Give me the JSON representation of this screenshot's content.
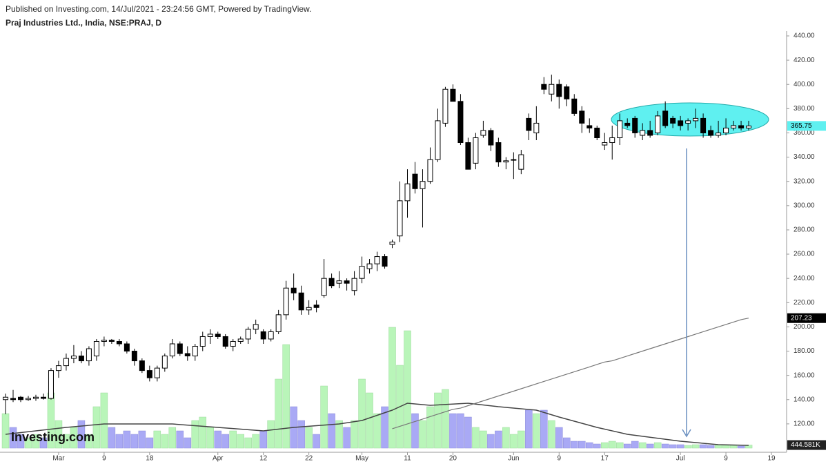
{
  "chart_data": {
    "type": "candlestick",
    "title": "Praj Industries Ltd., India, NSE:PRAJ, D",
    "subtitle": "Published on Investing.com, 14/Jul/2021 - 23:24:56 GMT, Powered by TradingView.",
    "logo": "Investing.com",
    "up_color": "#ffffff",
    "down_color": "#000000",
    "volume_up_color": "#b9f5b9",
    "volume_down_color": "#a9a9f5",
    "open": [
      140,
      141,
      142,
      140,
      141,
      142,
      141,
      164,
      168,
      174,
      176,
      172,
      176,
      188,
      189,
      188,
      186,
      180,
      172,
      164,
      158,
      166,
      176,
      186,
      178,
      176,
      184,
      192,
      194,
      192,
      184,
      188,
      190,
      198,
      196,
      190,
      196,
      210,
      232,
      228,
      214,
      218,
      226,
      240,
      236,
      238,
      230,
      240,
      248,
      252,
      258,
      268,
      275,
      304,
      326,
      314,
      320,
      338,
      368,
      396,
      386,
      352,
      335,
      358,
      362,
      352,
      336,
      338,
      330,
      372,
      360,
      400,
      392,
      400,
      398,
      388,
      378,
      366,
      364,
      350,
      352,
      356,
      368,
      372,
      358,
      362,
      360,
      378,
      372,
      370,
      368,
      370,
      372,
      362,
      358,
      360,
      364,
      366,
      364
    ],
    "high": [
      145,
      148,
      143,
      143,
      144,
      145,
      166,
      172,
      178,
      185,
      180,
      184,
      190,
      192,
      190,
      190,
      188,
      182,
      174,
      168,
      168,
      178,
      190,
      188,
      184,
      186,
      196,
      198,
      196,
      194,
      190,
      192,
      200,
      206,
      198,
      198,
      214,
      238,
      244,
      234,
      222,
      222,
      256,
      244,
      246,
      240,
      246,
      258,
      256,
      262,
      260,
      272,
      320,
      330,
      336,
      330,
      348,
      380,
      398,
      400,
      392,
      356,
      360,
      370,
      364,
      356,
      340,
      344,
      346,
      376,
      382,
      406,
      408,
      404,
      400,
      392,
      382,
      372,
      366,
      360,
      366,
      376,
      372,
      374,
      368,
      370,
      378,
      386,
      374,
      374,
      372,
      380,
      376,
      366,
      370,
      372,
      370,
      370,
      370
    ],
    "low": [
      128,
      138,
      138,
      139,
      139,
      140,
      140,
      158,
      164,
      170,
      170,
      168,
      172,
      184,
      186,
      184,
      178,
      168,
      162,
      155,
      155,
      163,
      174,
      176,
      172,
      172,
      180,
      186,
      190,
      182,
      180,
      186,
      186,
      194,
      186,
      188,
      194,
      206,
      222,
      210,
      210,
      212,
      224,
      232,
      232,
      230,
      226,
      236,
      244,
      246,
      248,
      265,
      270,
      290,
      310,
      282,
      318,
      336,
      365,
      386,
      350,
      330,
      330,
      356,
      345,
      332,
      330,
      322,
      326,
      354,
      354,
      392,
      386,
      380,
      382,
      374,
      360,
      360,
      354,
      346,
      338,
      350,
      364,
      356,
      354,
      356,
      358,
      364,
      364,
      362,
      362,
      364,
      356,
      356,
      356,
      358,
      362,
      362,
      362
    ],
    "close": [
      142,
      140,
      140,
      141,
      142,
      141,
      164,
      168,
      174,
      176,
      172,
      182,
      188,
      189,
      188,
      186,
      180,
      172,
      164,
      158,
      166,
      176,
      186,
      178,
      176,
      184,
      192,
      194,
      192,
      184,
      188,
      190,
      198,
      202,
      190,
      196,
      210,
      232,
      228,
      214,
      216,
      216,
      240,
      234,
      238,
      236,
      240,
      250,
      252,
      258,
      250,
      270,
      304,
      318,
      314,
      320,
      338,
      370,
      396,
      386,
      352,
      330,
      356,
      362,
      350,
      336,
      337,
      338,
      342,
      362,
      368,
      396,
      400,
      390,
      388,
      376,
      368,
      364,
      356,
      352,
      356,
      370,
      366,
      360,
      362,
      358,
      374,
      366,
      368,
      366,
      370,
      372,
      360,
      358,
      360,
      364,
      366,
      364,
      365.75
    ],
    "volume": [
      5000,
      3000,
      2000,
      1500,
      2000,
      1500,
      8000,
      4000,
      2000,
      3000,
      4000,
      2000,
      6000,
      8000,
      3000,
      2000,
      2500,
      2000,
      2500,
      1500,
      2500,
      2000,
      3000,
      2500,
      1500,
      4000,
      4500,
      3000,
      2500,
      2000,
      2500,
      2000,
      1500,
      2000,
      2500,
      4000,
      10000,
      15000,
      6000,
      4000,
      3000,
      2000,
      9000,
      5000,
      4000,
      3000,
      4000,
      10000,
      8000,
      5000,
      6000,
      17500,
      12000,
      17000,
      5000,
      4000,
      6000,
      8000,
      8500,
      5000,
      5000,
      4500,
      3000,
      2500,
      2000,
      2500,
      3000,
      2000,
      2500,
      5500,
      5000,
      5500,
      4000,
      3000,
      1500,
      1000,
      1000,
      800,
      600,
      800,
      1000,
      800,
      600,
      1000,
      800,
      600,
      800,
      600,
      500,
      500,
      400,
      500,
      500,
      400,
      500,
      400,
      400,
      300,
      444.581
    ],
    "volume_value_labels": {
      "98": "444.581K"
    },
    "price_ma": {
      "start": 51,
      "color": "#777777",
      "values": [
        116,
        118,
        120,
        122,
        124,
        126,
        128,
        130,
        132,
        133,
        135,
        137,
        139,
        141,
        143,
        145,
        147,
        149,
        151,
        153,
        155,
        157,
        159,
        161,
        163,
        165,
        167,
        169,
        171,
        172,
        174,
        176,
        178,
        180,
        182,
        184,
        186,
        188,
        190,
        192,
        194,
        196,
        198,
        200,
        202,
        204,
        206,
        207.23
      ]
    },
    "volume_ma": {
      "color": "#444444",
      "x": [
        0,
        8,
        13,
        22,
        28,
        34,
        38,
        44,
        47,
        51,
        53,
        56,
        61,
        65,
        70,
        73,
        78,
        82,
        89,
        94,
        98
      ],
      "values": [
        2000,
        3000,
        3500,
        3500,
        3000,
        2500,
        3000,
        3500,
        4000,
        5500,
        6500,
        6200,
        6500,
        6000,
        5500,
        4500,
        3000,
        2000,
        1000,
        500,
        400
      ]
    },
    "ylim": [
      100,
      440
    ],
    "yticks": [
      {
        "value": 120,
        "label": "120.00"
      },
      {
        "value": 140,
        "label": "140.00"
      },
      {
        "value": 160,
        "label": "160.00"
      },
      {
        "value": 180,
        "label": "180.00"
      },
      {
        "value": 200,
        "label": "200.00"
      },
      {
        "value": 220,
        "label": "220.00"
      },
      {
        "value": 240,
        "label": "240.00"
      },
      {
        "value": 260,
        "label": "260.00"
      },
      {
        "value": 280,
        "label": "280.00"
      },
      {
        "value": 300,
        "label": "300.00"
      },
      {
        "value": 320,
        "label": "320.00"
      },
      {
        "value": 340,
        "label": "340.00"
      },
      {
        "value": 360,
        "label": "360.00"
      },
      {
        "value": 380,
        "label": "380.00"
      },
      {
        "value": 400,
        "label": "400.00"
      },
      {
        "value": 420,
        "label": "420.00"
      },
      {
        "value": 440,
        "label": "440.00"
      }
    ],
    "vlim": [
      0,
      20000
    ],
    "xlim": [
      -0.73,
      103
    ],
    "xticks": [
      {
        "value": 7,
        "label": "Mar"
      },
      {
        "value": 13,
        "label": "9"
      },
      {
        "value": 19,
        "label": "18"
      },
      {
        "value": 28,
        "label": "Apr"
      },
      {
        "value": 34,
        "label": "12"
      },
      {
        "value": 40,
        "label": "22"
      },
      {
        "value": 47,
        "label": "May"
      },
      {
        "value": 53,
        "label": "11"
      },
      {
        "value": 59,
        "label": "20"
      },
      {
        "value": 67,
        "label": "Jun"
      },
      {
        "value": 73,
        "label": "9"
      },
      {
        "value": 79,
        "label": "17"
      },
      {
        "value": 89,
        "label": "Jul"
      },
      {
        "value": 95,
        "label": "9"
      },
      {
        "value": 101,
        "label": "19"
      }
    ]
  }
}
